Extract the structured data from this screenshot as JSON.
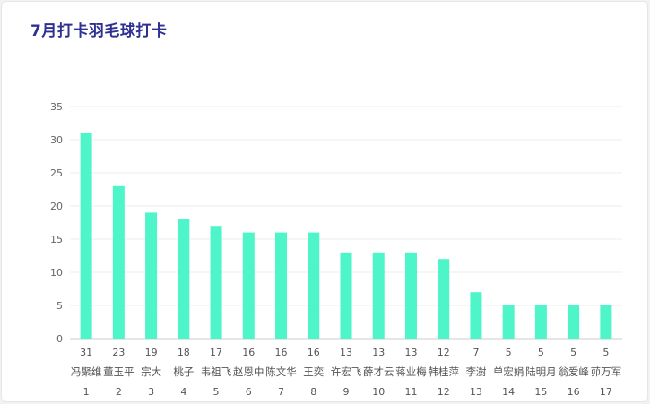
{
  "title": "7月打卡羽毛球打卡",
  "chart_data": {
    "type": "bar",
    "title": "7月打卡羽毛球打卡",
    "xlabel": "",
    "ylabel": "",
    "ylim": [
      0,
      35
    ],
    "yticks": [
      0,
      5,
      10,
      15,
      20,
      25,
      30,
      35
    ],
    "grid": true,
    "bar_color": "#4ef5c8",
    "categories": [
      "冯聚维",
      "董玉平",
      "宗大",
      "桃子",
      "韦祖飞",
      "赵恩中",
      "陈文华",
      "王奕",
      "许宏飞",
      "薛才云",
      "蒋业梅",
      "韩桂萍",
      "李澍",
      "单宏娟",
      "陆明月",
      "翁爱峰",
      "茆万军"
    ],
    "values": [
      31,
      23,
      19,
      18,
      17,
      16,
      16,
      16,
      13,
      13,
      13,
      12,
      7,
      5,
      5,
      5,
      5
    ],
    "ranks": [
      "1",
      "2",
      "3",
      "4",
      "5",
      "6",
      "7",
      "8",
      "9",
      "10",
      "11",
      "12",
      "13",
      "14",
      "15",
      "16",
      "17"
    ]
  }
}
